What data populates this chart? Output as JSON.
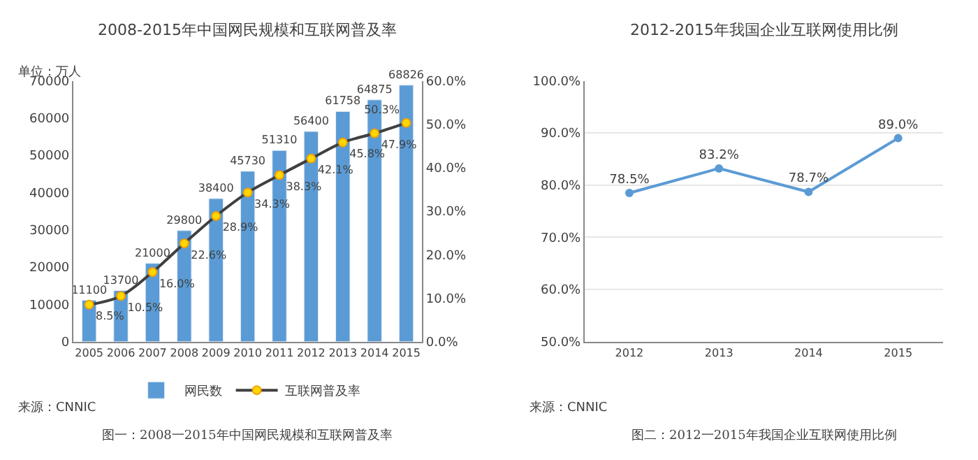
{
  "chart_data": [
    {
      "type": "bar",
      "title": "2008-2015年中国网民规模和互联网普及率",
      "ylabel": "单位：万人",
      "categories": [
        "2005",
        "2006",
        "2007",
        "2008",
        "2009",
        "2010",
        "2011",
        "2012",
        "2013",
        "2014",
        "2015"
      ],
      "series": [
        {
          "name": "网民数",
          "type": "bar",
          "color": "#5b9bd5",
          "values": [
            11100,
            13700,
            21000,
            29800,
            38400,
            45730,
            51310,
            56400,
            61758,
            64875,
            68826
          ],
          "value_labels": [
            "11100",
            "13700",
            "21000",
            "29800",
            "38400",
            "45730",
            "51310",
            "56400",
            "61758",
            "64875",
            "68826"
          ]
        },
        {
          "name": "互联网普及率",
          "type": "line",
          "axis": "y2",
          "color": "#404040",
          "marker": "circle",
          "values": [
            8.5,
            10.5,
            16.0,
            22.6,
            28.9,
            34.3,
            38.3,
            42.1,
            45.8,
            47.9,
            50.3
          ],
          "value_labels": [
            "8.5%",
            "10.5%",
            "16.0%",
            "22.6%",
            "28.9%",
            "34.3%",
            "38.3%",
            "42.1%",
            "45.8%",
            "47.9%",
            "50.3%"
          ]
        }
      ],
      "ylim": [
        0,
        70000
      ],
      "yticks": [
        0,
        10000,
        20000,
        30000,
        40000,
        50000,
        60000,
        70000
      ],
      "y2lim": [
        0,
        60
      ],
      "y2ticks": [
        {
          "value": 0,
          "label": "0.0%"
        },
        {
          "value": 10,
          "label": "10.0%"
        },
        {
          "value": 20,
          "label": "20.0%"
        },
        {
          "value": 30,
          "label": "30.0%"
        },
        {
          "value": 40,
          "label": "40.0%"
        },
        {
          "value": 50,
          "label": "50.0%"
        },
        {
          "value": 60,
          "label": "60.0%"
        }
      ],
      "legend": "bottom",
      "grid": false,
      "annotations": [
        "来源：CNNIC",
        "图一：2008一2015年中国网民规模和互联网普及率"
      ]
    },
    {
      "type": "line",
      "title": "2012-2015年我国企业互联网使用比例",
      "categories": [
        "2012",
        "2013",
        "2014",
        "2015"
      ],
      "series": [
        {
          "color": "#5b9bd5",
          "marker": "circle",
          "values": [
            78.5,
            83.2,
            78.7,
            89.0
          ],
          "value_labels": [
            "78.5%",
            "83.2%",
            "78.7%",
            "89.0%"
          ]
        }
      ],
      "ylim": [
        50,
        100
      ],
      "yticks": [
        {
          "value": 50,
          "label": "50.0%"
        },
        {
          "value": 60,
          "label": "60.0%"
        },
        {
          "value": 70,
          "label": "70.0%"
        },
        {
          "value": 80,
          "label": "80.0%"
        },
        {
          "value": 90,
          "label": "90.0%"
        },
        {
          "value": 100,
          "label": "100.0%"
        }
      ],
      "grid": "y",
      "legend": false,
      "annotations": [
        "来源：CNNIC",
        "图二：2012一2015年我国企业互联网使用比例"
      ]
    }
  ]
}
